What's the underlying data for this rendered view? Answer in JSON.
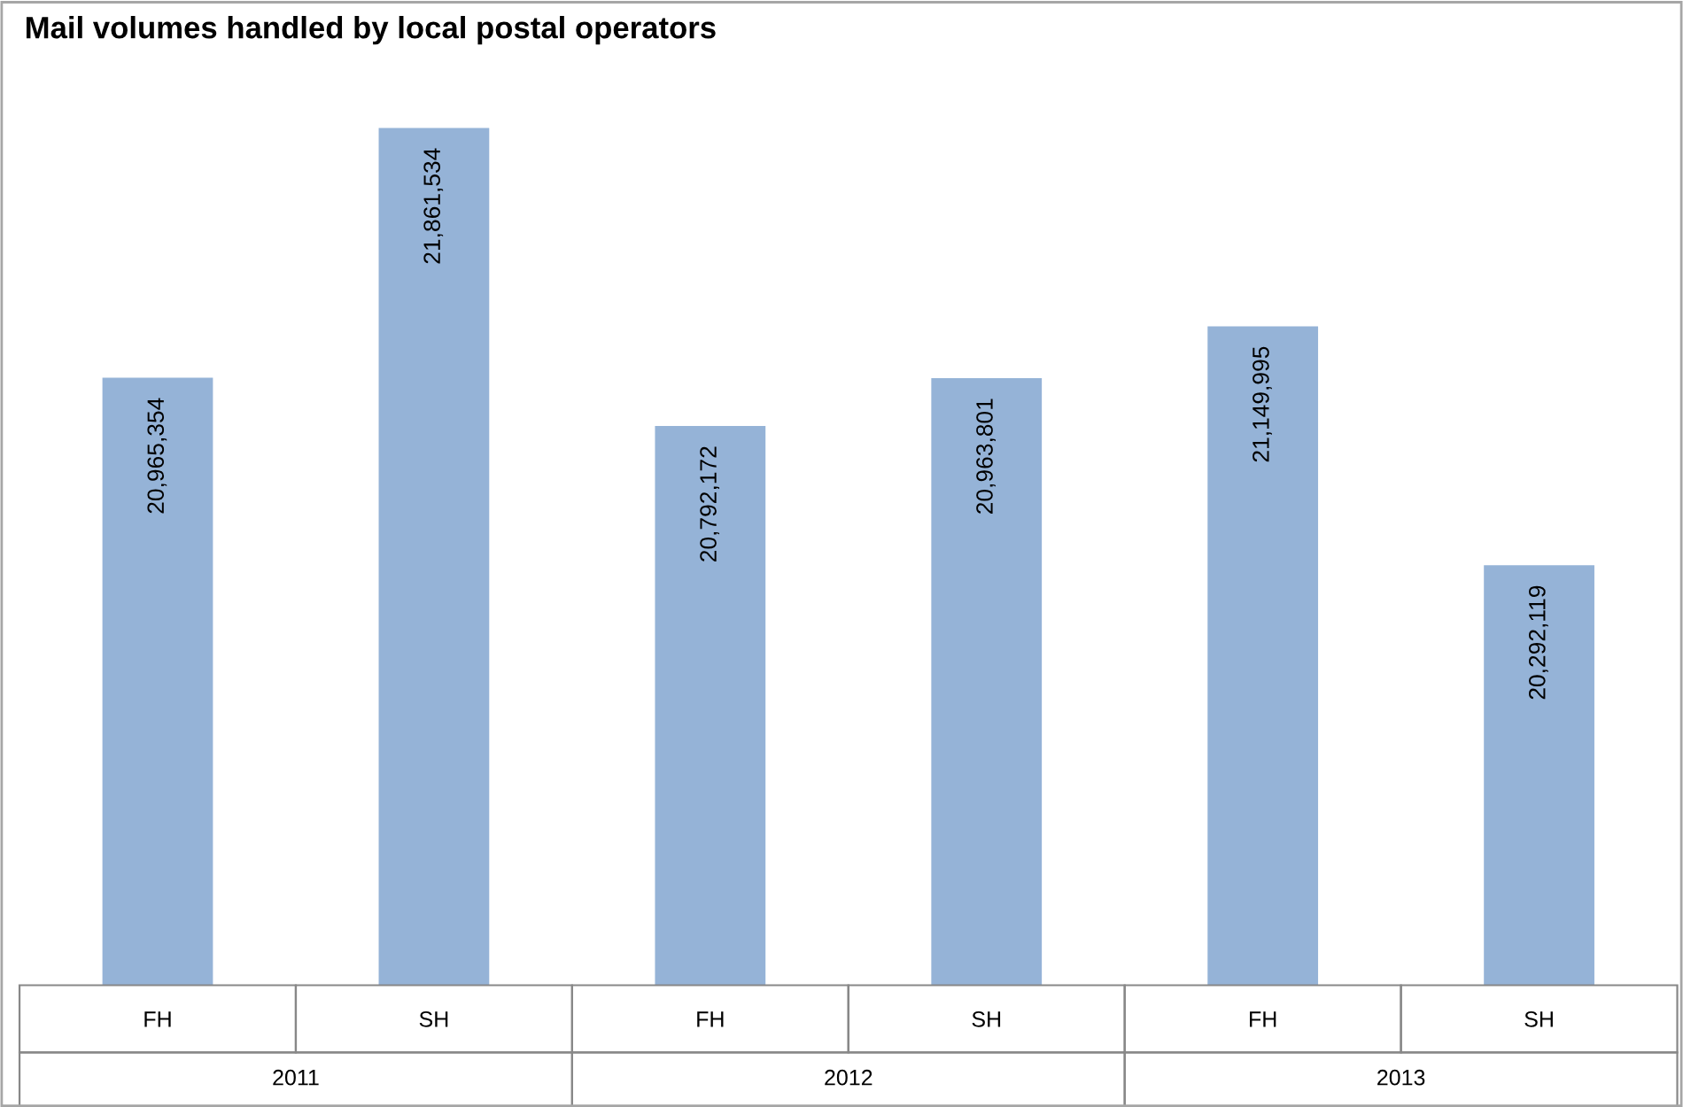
{
  "chart_data": {
    "type": "bar",
    "title": "Mail volumes handled by local postal operators",
    "categories": [
      "FH",
      "SH",
      "FH",
      "SH",
      "FH",
      "SH"
    ],
    "values": [
      20965354,
      21861534,
      20792172,
      20963801,
      21149995,
      20292119
    ],
    "value_labels": [
      "20,965,354",
      "21,861,534",
      "20,792,172",
      "20,963,801",
      "21,149,995",
      "20,292,119"
    ],
    "color": "#95b3d7",
    "tick_labels": "x",
    "annotations": [
      "2011",
      "2012",
      "2013"
    ],
    "legend": false
  }
}
